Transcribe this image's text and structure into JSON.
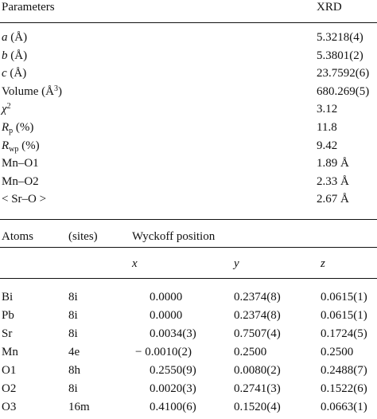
{
  "params_table": {
    "headers": {
      "parameters": "Parameters",
      "method": "XRD"
    },
    "rows": [
      {
        "sym": "a",
        "unit": " (Å)",
        "value": "5.3218(4)"
      },
      {
        "sym": "b",
        "unit": " (Å)",
        "value": "5.3801(2)"
      },
      {
        "sym": "c",
        "unit": " (Å)",
        "value": "23.7592(6)"
      },
      {
        "pre": "Volume (Å",
        "sup": "3",
        "post": ")",
        "value": "680.269(5)"
      },
      {
        "sym": "χ",
        "sup": "2",
        "value": "3.12"
      },
      {
        "sym": "R",
        "sub": "p",
        "post": " (%)",
        "value": "11.8"
      },
      {
        "sym": "R",
        "sub": "wp",
        "post": " (%)",
        "value": "9.42"
      },
      {
        "pre": "Mn–O1",
        "value": "1.89  Å"
      },
      {
        "pre": "Mn–O2",
        "value": "2.33  Å"
      },
      {
        "pre": "< Sr–O >",
        "value": "2.67  Å"
      }
    ]
  },
  "atoms_table": {
    "headers": {
      "atoms": "Atoms",
      "sites": "(sites)",
      "wyckoff": "Wyckoff position",
      "x": "x",
      "y": "y",
      "z": "z"
    },
    "rows": [
      {
        "atom": "Bi",
        "site": "8i",
        "x": "0.0000",
        "y": "0.2374(8)",
        "z": "0.0615(1)"
      },
      {
        "atom": "Pb",
        "site": "8i",
        "x": "0.0000",
        "y": "0.2374(8)",
        "z": "0.0615(1)"
      },
      {
        "atom": "Sr",
        "site": "8i",
        "x": "0.0034(3)",
        "y": "0.7507(4)",
        "z": "0.1724(5)"
      },
      {
        "atom": "Mn",
        "site": "4e",
        "x": "− 0.0010(2)",
        "y": "0.2500",
        "z": "0.2500"
      },
      {
        "atom": "O1",
        "site": "8h",
        "x": "0.2550(9)",
        "y": "0.0080(2)",
        "z": "0.2488(7)"
      },
      {
        "atom": "O2",
        "site": "8i",
        "x": "0.0020(3)",
        "y": "0.2741(3)",
        "z": "0.1522(6)"
      },
      {
        "atom": "O3",
        "site": "16m",
        "x": "0.4100(6)",
        "y": "0.1520(4)",
        "z": "0.0663(1)"
      }
    ]
  }
}
